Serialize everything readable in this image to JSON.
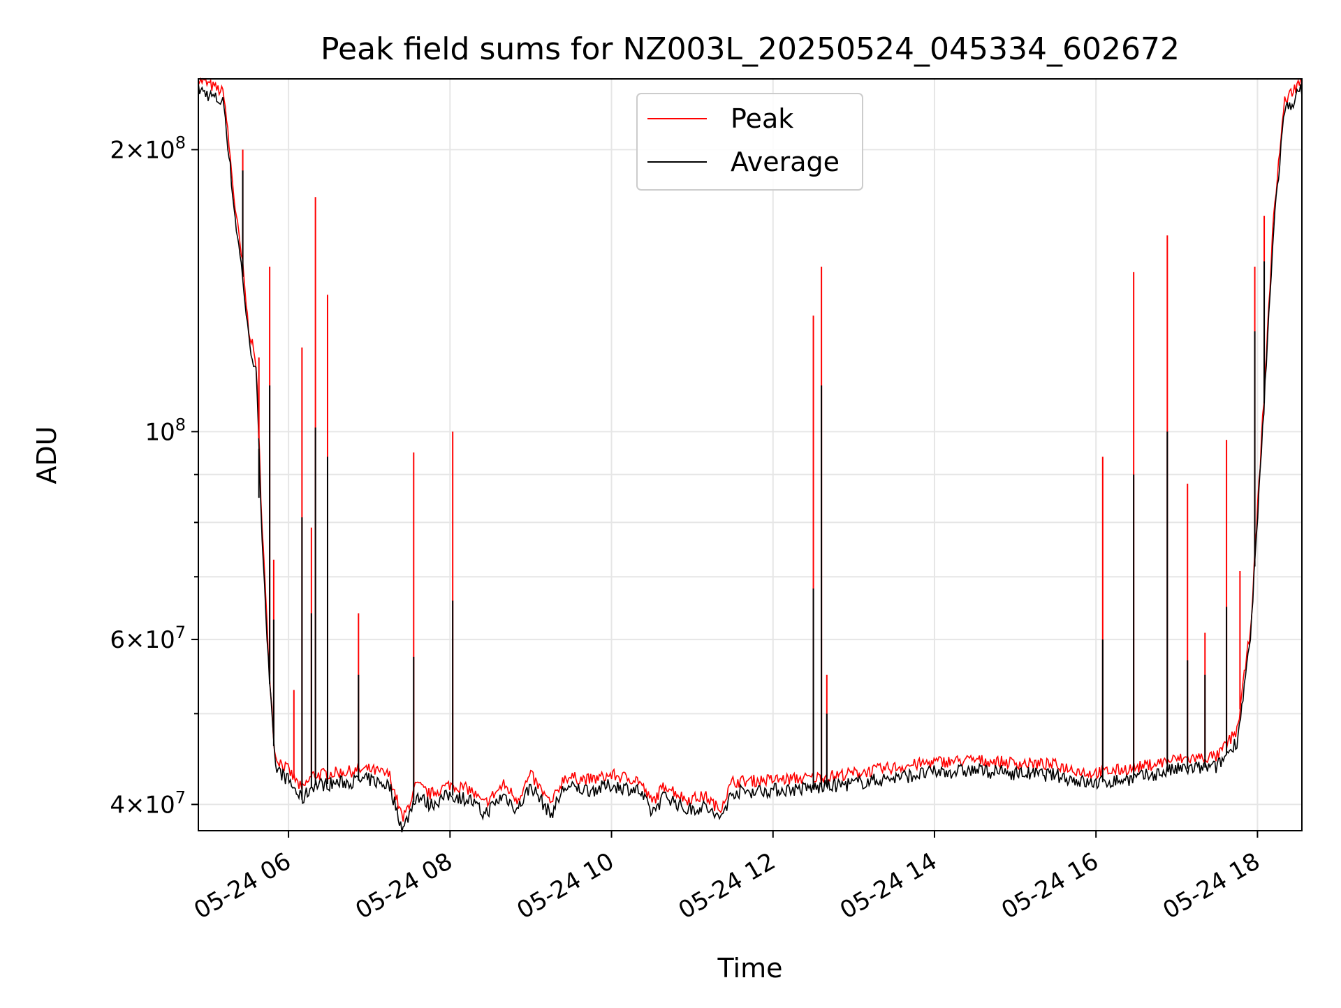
{
  "chart_data": {
    "type": "line",
    "title": "Peak field sums for NZ003L_20250524_045334_602672",
    "xlabel": "Time",
    "ylabel": "ADU",
    "y_scale": "log",
    "ylim": [
      37500000,
      238000000
    ],
    "xlim": [
      "2025-05-24 04:53",
      "2025-05-24 18:33"
    ],
    "grid": true,
    "legend_position": "upper center",
    "x_ticks": [
      "05-24 06",
      "05-24 08",
      "05-24 10",
      "05-24 12",
      "05-24 14",
      "05-24 16",
      "05-24 18"
    ],
    "y_tick_labels": [
      {
        "value": 40000000,
        "mantissa": "4",
        "exp": "7"
      },
      {
        "value": 60000000,
        "mantissa": "6",
        "exp": "7"
      },
      {
        "value": 100000000,
        "mantissa": "",
        "exp": "8"
      },
      {
        "value": 200000000,
        "mantissa": "2",
        "exp": "8"
      }
    ],
    "colors": {
      "peak": "#ff0000",
      "average": "#000000",
      "grid": "#e6e6e6"
    },
    "series": [
      {
        "name": "Peak",
        "color": "#ff0000",
        "baseline": [
          [
            "2025-05-24 04:53",
            238000000
          ],
          [
            "2025-05-24 05:12",
            230000000
          ],
          [
            "2025-05-24 05:20",
            175000000
          ],
          [
            "2025-05-24 05:26",
            150000000
          ],
          [
            "2025-05-24 05:30",
            130000000
          ],
          [
            "2025-05-24 05:36",
            118000000
          ],
          [
            "2025-05-24 05:40",
            82000000
          ],
          [
            "2025-05-24 05:45",
            58000000
          ],
          [
            "2025-05-24 05:50",
            45000000
          ],
          [
            "2025-05-24 06:00",
            43500000
          ],
          [
            "2025-05-24 06:10",
            41500000
          ],
          [
            "2025-05-24 06:18",
            43000000
          ],
          [
            "2025-05-24 06:40",
            43300000
          ],
          [
            "2025-05-24 07:00",
            43600000
          ],
          [
            "2025-05-24 07:15",
            43000000
          ],
          [
            "2025-05-24 07:25",
            38500000
          ],
          [
            "2025-05-24 07:35",
            42000000
          ],
          [
            "2025-05-24 07:45",
            41000000
          ],
          [
            "2025-05-24 08:00",
            42000000
          ],
          [
            "2025-05-24 08:15",
            41500000
          ],
          [
            "2025-05-24 08:25",
            40000000
          ],
          [
            "2025-05-24 08:40",
            42000000
          ],
          [
            "2025-05-24 08:50",
            40500000
          ],
          [
            "2025-05-24 09:00",
            43000000
          ],
          [
            "2025-05-24 09:15",
            40000000
          ],
          [
            "2025-05-24 09:25",
            42800000
          ],
          [
            "2025-05-24 09:45",
            42500000
          ],
          [
            "2025-05-24 10:00",
            43000000
          ],
          [
            "2025-05-24 10:20",
            42500000
          ],
          [
            "2025-05-24 10:30",
            40200000
          ],
          [
            "2025-05-24 10:40",
            42000000
          ],
          [
            "2025-05-24 10:55",
            40500000
          ],
          [
            "2025-05-24 11:10",
            40800000
          ],
          [
            "2025-05-24 11:20",
            39500000
          ],
          [
            "2025-05-24 11:30",
            42300000
          ],
          [
            "2025-05-24 12:00",
            42500000
          ],
          [
            "2025-05-24 12:30",
            42700000
          ],
          [
            "2025-05-24 13:00",
            43200000
          ],
          [
            "2025-05-24 13:30",
            43800000
          ],
          [
            "2025-05-24 14:00",
            44400000
          ],
          [
            "2025-05-24 14:30",
            44600000
          ],
          [
            "2025-05-24 15:00",
            44300000
          ],
          [
            "2025-05-24 15:30",
            44100000
          ],
          [
            "2025-05-24 15:55",
            43200000
          ],
          [
            "2025-05-24 16:10",
            43400000
          ],
          [
            "2025-05-24 16:30",
            43800000
          ],
          [
            "2025-05-24 17:00",
            44700000
          ],
          [
            "2025-05-24 17:30",
            45000000
          ],
          [
            "2025-05-24 17:45",
            48000000
          ],
          [
            "2025-05-24 17:55",
            62000000
          ],
          [
            "2025-05-24 18:05",
            110000000
          ],
          [
            "2025-05-24 18:12",
            170000000
          ],
          [
            "2025-05-24 18:20",
            225000000
          ],
          [
            "2025-05-24 18:33",
            238000000
          ]
        ],
        "spikes": [
          [
            "2025-05-24 05:26",
            200000000
          ],
          [
            "2025-05-24 05:38",
            120000000
          ],
          [
            "2025-05-24 05:46",
            150000000
          ],
          [
            "2025-05-24 05:49",
            73000000
          ],
          [
            "2025-05-24 06:04",
            53000000
          ],
          [
            "2025-05-24 06:10",
            123000000
          ],
          [
            "2025-05-24 06:17",
            79000000
          ],
          [
            "2025-05-24 06:20",
            178000000
          ],
          [
            "2025-05-24 06:29",
            140000000
          ],
          [
            "2025-05-24 06:52",
            64000000
          ],
          [
            "2025-05-24 07:33",
            95000000
          ],
          [
            "2025-05-24 08:02",
            100000000
          ],
          [
            "2025-05-24 12:30",
            133000000
          ],
          [
            "2025-05-24 12:36",
            150000000
          ],
          [
            "2025-05-24 12:40",
            55000000
          ],
          [
            "2025-05-24 16:05",
            94000000
          ],
          [
            "2025-05-24 16:28",
            148000000
          ],
          [
            "2025-05-24 16:53",
            162000000
          ],
          [
            "2025-05-24 17:08",
            88000000
          ],
          [
            "2025-05-24 17:21",
            61000000
          ],
          [
            "2025-05-24 17:37",
            98000000
          ],
          [
            "2025-05-24 17:47",
            71000000
          ],
          [
            "2025-05-24 17:58",
            150000000
          ],
          [
            "2025-05-24 18:05",
            170000000
          ]
        ]
      },
      {
        "name": "Average",
        "color": "#000000",
        "baseline_offset_ratio": 0.975,
        "spikes": [
          [
            "2025-05-24 05:26",
            190000000
          ],
          [
            "2025-05-24 05:38",
            85000000
          ],
          [
            "2025-05-24 05:46",
            112000000
          ],
          [
            "2025-05-24 05:49",
            63000000
          ],
          [
            "2025-05-24 06:10",
            81000000
          ],
          [
            "2025-05-24 06:17",
            64000000
          ],
          [
            "2025-05-24 06:20",
            101000000
          ],
          [
            "2025-05-24 06:29",
            94000000
          ],
          [
            "2025-05-24 06:52",
            55000000
          ],
          [
            "2025-05-24 07:33",
            57500000
          ],
          [
            "2025-05-24 08:02",
            66000000
          ],
          [
            "2025-05-24 12:30",
            68000000
          ],
          [
            "2025-05-24 12:36",
            112000000
          ],
          [
            "2025-05-24 12:40",
            50000000
          ],
          [
            "2025-05-24 16:05",
            60000000
          ],
          [
            "2025-05-24 16:28",
            90000000
          ],
          [
            "2025-05-24 16:53",
            100000000
          ],
          [
            "2025-05-24 17:08",
            57000000
          ],
          [
            "2025-05-24 17:21",
            55000000
          ],
          [
            "2025-05-24 17:37",
            65000000
          ],
          [
            "2025-05-24 17:58",
            128000000
          ],
          [
            "2025-05-24 18:05",
            152000000
          ]
        ]
      }
    ]
  }
}
